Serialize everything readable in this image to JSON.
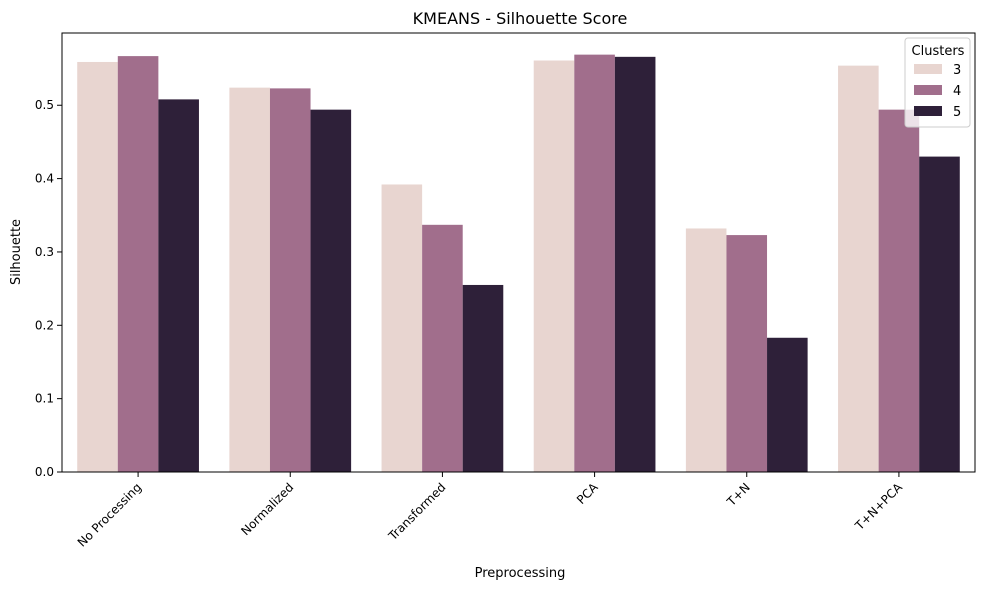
{
  "chart_data": {
    "type": "bar",
    "title": "KMEANS - Silhouette Score",
    "xlabel": "Preprocessing",
    "ylabel": "Silhouette",
    "categories": [
      "No Processing",
      "Normalized",
      "Transformed",
      "PCA",
      "T+N",
      "T+N+PCA"
    ],
    "series": [
      {
        "name": "3",
        "color": "#e8d5d0",
        "values": [
          0.559,
          0.524,
          0.392,
          0.561,
          0.332,
          0.554
        ]
      },
      {
        "name": "4",
        "color": "#a16e8c",
        "values": [
          0.567,
          0.523,
          0.337,
          0.569,
          0.323,
          0.494
        ]
      },
      {
        "name": "5",
        "color": "#2e2039",
        "values": [
          0.508,
          0.494,
          0.255,
          0.566,
          0.183,
          0.43
        ]
      }
    ],
    "ylim": [
      0,
      0.5985
    ],
    "yticks": [
      "0.0",
      "0.1",
      "0.2",
      "0.3",
      "0.4",
      "0.5"
    ],
    "legend": {
      "title": "Clusters",
      "position": "top-right"
    },
    "grid": false
  }
}
